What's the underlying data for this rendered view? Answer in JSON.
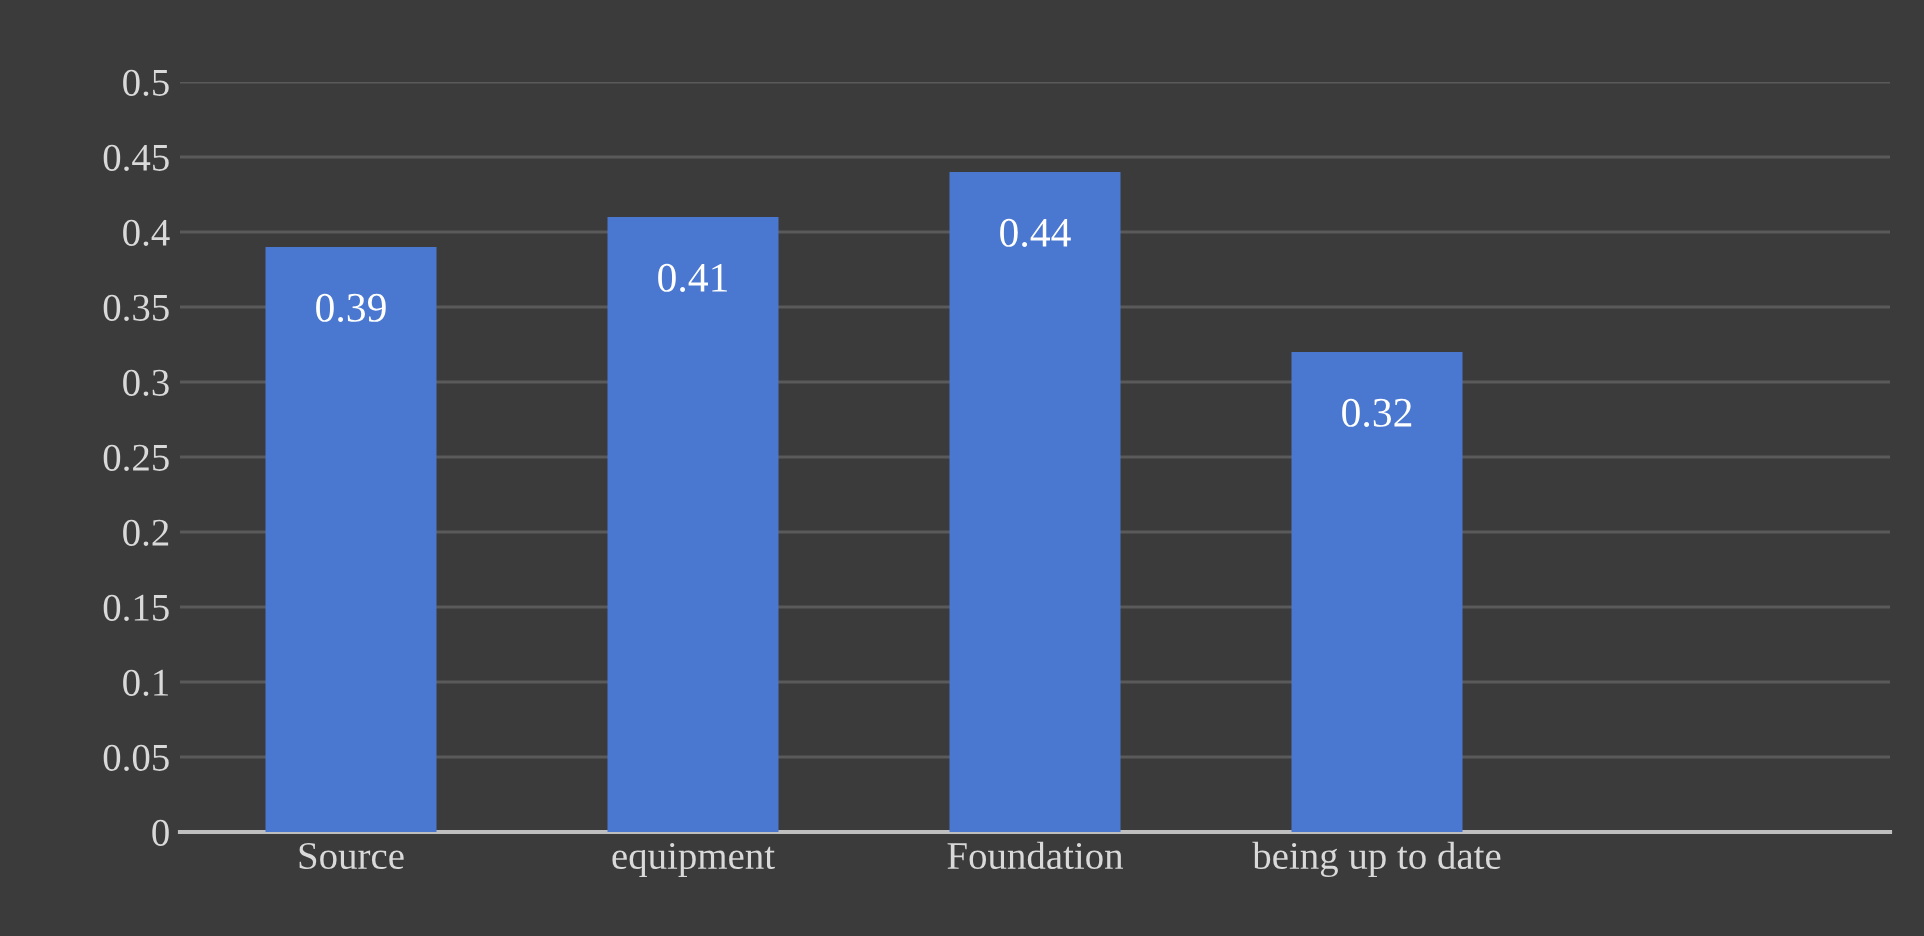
{
  "chart_data": {
    "type": "bar",
    "categories": [
      "Source",
      "equipment",
      "Foundation",
      "being up to date",
      null
    ],
    "values": [
      0.39,
      0.41,
      0.44,
      0.32,
      null
    ],
    "color": "#4a78d0",
    "ylim": [
      0,
      0.5
    ],
    "yticks": [
      0,
      0.05,
      0.1,
      0.15,
      0.2,
      0.25,
      0.3,
      0.35,
      0.4,
      0.45,
      0.5
    ],
    "grid": "y",
    "data_labels": true,
    "legend": false
  }
}
